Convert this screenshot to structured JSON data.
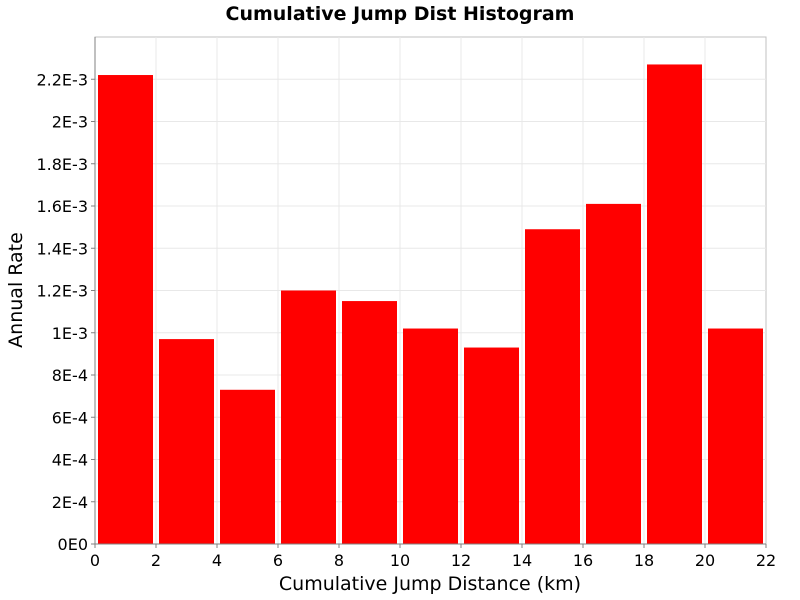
{
  "chart_data": {
    "type": "bar",
    "title": "Cumulative Jump Dist Histogram",
    "xlabel": "Cumulative Jump Distance (km)",
    "ylabel": "Annual Rate",
    "xlim": [
      0,
      22
    ],
    "ylim": [
      0,
      0.0024
    ],
    "x_ticks": [
      0,
      2,
      4,
      6,
      8,
      10,
      12,
      14,
      16,
      18,
      20,
      22
    ],
    "x_tick_labels": [
      "0",
      "2",
      "4",
      "6",
      "8",
      "10",
      "12",
      "14",
      "16",
      "18",
      "20",
      "22"
    ],
    "y_ticks": [
      0,
      0.0002,
      0.0004,
      0.0006,
      0.0008,
      0.001,
      0.0012,
      0.0014,
      0.0016,
      0.0018,
      0.002,
      0.0022
    ],
    "y_tick_labels": [
      "0E0",
      "2E-4",
      "4E-4",
      "6E-4",
      "8E-4",
      "1E-3",
      "1.2E-3",
      "1.4E-3",
      "1.6E-3",
      "1.8E-3",
      "2E-3",
      "2.2E-3"
    ],
    "grid": true,
    "bar_color": "#ff0000",
    "bars": [
      {
        "x_start": 0,
        "x_end": 2,
        "value": 0.00222
      },
      {
        "x_start": 2,
        "x_end": 4,
        "value": 0.00097
      },
      {
        "x_start": 4,
        "x_end": 6,
        "value": 0.00073
      },
      {
        "x_start": 6,
        "x_end": 8,
        "value": 0.0012
      },
      {
        "x_start": 8,
        "x_end": 10,
        "value": 0.00115
      },
      {
        "x_start": 10,
        "x_end": 12,
        "value": 0.00102
      },
      {
        "x_start": 12,
        "x_end": 14,
        "value": 0.00093
      },
      {
        "x_start": 14,
        "x_end": 16,
        "value": 0.00149
      },
      {
        "x_start": 16,
        "x_end": 18,
        "value": 0.00161
      },
      {
        "x_start": 18,
        "x_end": 20,
        "value": 0.00227
      },
      {
        "x_start": 20,
        "x_end": 22,
        "value": 0.00102
      }
    ]
  }
}
